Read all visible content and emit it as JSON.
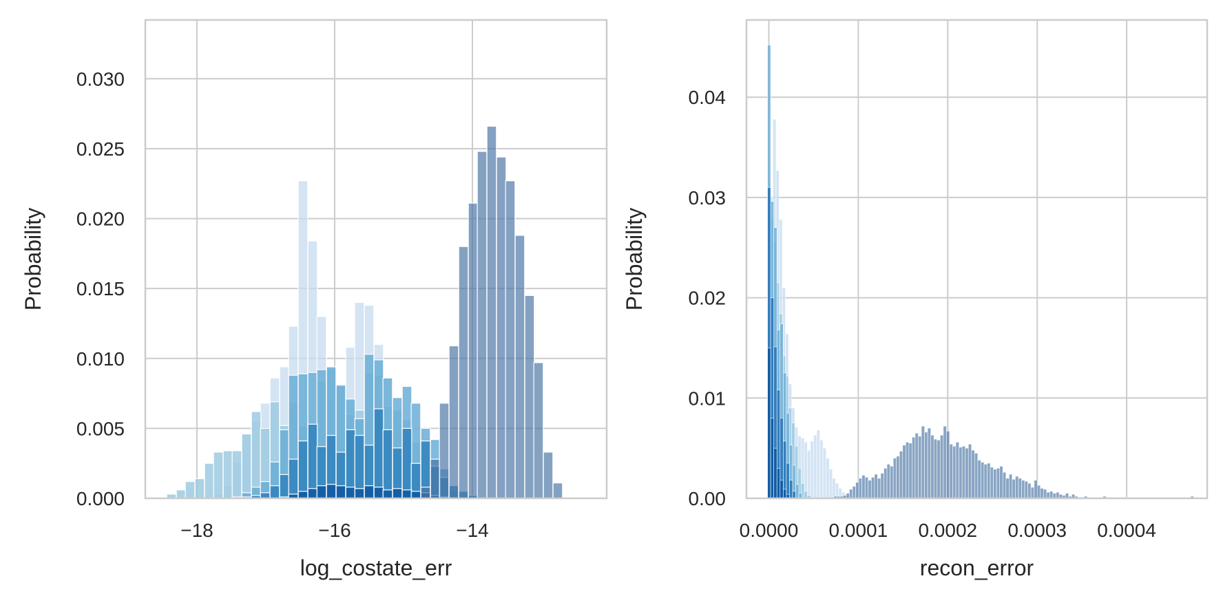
{
  "chart_data": [
    {
      "type": "bar",
      "histogram": true,
      "xlabel": "log_costate_err",
      "ylabel": "Probability",
      "xlim": [
        -18.75,
        -12.05
      ],
      "ylim": [
        0,
        0.0342
      ],
      "xticks": [
        -18,
        -16,
        -14
      ],
      "xtick_labels": [
        "−18",
        "−16",
        "−14"
      ],
      "yticks": [
        0,
        0.005,
        0.01,
        0.015,
        0.02,
        0.025,
        0.03
      ],
      "ytick_labels": [
        "0.000",
        "0.005",
        "0.010",
        "0.015",
        "0.020",
        "0.025",
        "0.030"
      ],
      "grid": true,
      "bin_width": 0.137,
      "series": [
        {
          "color": "#c6dbef",
          "opacity": 0.75,
          "x": [
            -17.69,
            -17.55,
            -17.42,
            -17.28,
            -17.14,
            -17.01,
            -16.87,
            -16.73,
            -16.6,
            -16.46,
            -16.32,
            -16.19,
            -16.05,
            -15.91,
            -15.77,
            -15.64,
            -15.5,
            -15.36,
            -15.23,
            -15.09,
            -14.95,
            -14.82,
            -14.68
          ],
          "values": [
            0.0003,
            0.0009,
            0.0026,
            0.0045,
            0.0055,
            0.0068,
            0.0086,
            0.0094,
            0.0123,
            0.0227,
            0.0184,
            0.013,
            0.0073,
            0.0064,
            0.0108,
            0.014,
            0.0138,
            0.011,
            0.0086,
            0.0055,
            0.0036,
            0.0012,
            0.0003
          ]
        },
        {
          "color": "#9ecae1",
          "opacity": 0.85,
          "x": [
            -18.37,
            -18.23,
            -18.1,
            -17.96,
            -17.82,
            -17.69,
            -17.55,
            -17.42,
            -17.28,
            -17.14,
            -17.01,
            -16.87,
            -16.73,
            -16.6,
            -16.46,
            -16.32,
            -16.19,
            -16.05,
            -15.91,
            -15.77,
            -15.64,
            -15.5,
            -15.36,
            -15.23,
            -15.09,
            -14.95,
            -14.82,
            -14.68,
            -14.54
          ],
          "values": [
            0.0003,
            0.0006,
            0.0012,
            0.0014,
            0.0025,
            0.0033,
            0.0034,
            0.0034,
            0.0046,
            0.0062,
            0.005,
            0.0069,
            0.0052,
            0.0069,
            0.0052,
            0.0036,
            0.0084,
            0.0093,
            0.008,
            0.006,
            0.0063,
            0.009,
            0.0088,
            0.0066,
            0.0063,
            0.0056,
            0.004,
            0.002,
            0.0007
          ]
        },
        {
          "color": "#6baed6",
          "opacity": 0.85,
          "x": [
            -17.42,
            -17.28,
            -17.14,
            -17.01,
            -16.87,
            -16.73,
            -16.6,
            -16.46,
            -16.32,
            -16.19,
            -16.05,
            -15.91,
            -15.77,
            -15.64,
            -15.5,
            -15.36,
            -15.23,
            -15.09,
            -14.95,
            -14.82,
            -14.68,
            -14.54,
            -14.41,
            -14.27
          ],
          "values": [
            0.0001,
            0.0004,
            0.0008,
            0.0012,
            0.0026,
            0.0049,
            0.0088,
            0.0089,
            0.009,
            0.0092,
            0.0094,
            0.0081,
            0.0071,
            0.0057,
            0.0103,
            0.0099,
            0.0086,
            0.0072,
            0.008,
            0.0068,
            0.005,
            0.0042,
            0.0021,
            0.0006
          ]
        },
        {
          "color": "#3182bd",
          "opacity": 0.85,
          "x": [
            -17.28,
            -17.14,
            -17.01,
            -16.87,
            -16.73,
            -16.6,
            -16.46,
            -16.32,
            -16.19,
            -16.05,
            -15.91,
            -15.77,
            -15.64,
            -15.5,
            -15.36,
            -15.23,
            -15.09,
            -14.95,
            -14.82,
            -14.68,
            -14.54,
            -14.41,
            -14.27,
            -14.13,
            -13.99
          ],
          "values": [
            0.0001,
            0.0002,
            0.0004,
            0.0009,
            0.0017,
            0.0028,
            0.0041,
            0.0053,
            0.0037,
            0.0045,
            0.0033,
            0.0049,
            0.0045,
            0.0038,
            0.0064,
            0.0049,
            0.0036,
            0.005,
            0.0025,
            0.0041,
            0.0023,
            0.0015,
            0.0009,
            0.0005,
            0.0002
          ]
        },
        {
          "color": "#08519c",
          "opacity": 0.75,
          "x": [
            -16.73,
            -16.6,
            -16.46,
            -16.32,
            -16.19,
            -16.05,
            -15.91,
            -15.77,
            -15.64,
            -15.5,
            -15.36,
            -15.23,
            -15.09,
            -14.95,
            -14.82,
            -14.68,
            -14.54,
            -14.41
          ],
          "values": [
            0.0001,
            0.0003,
            0.0005,
            0.0007,
            0.0009,
            0.001,
            0.0009,
            0.0008,
            0.0007,
            0.0009,
            0.0008,
            0.0006,
            0.0007,
            0.0006,
            0.0005,
            0.0004,
            0.0002,
            0.0001
          ]
        },
        {
          "color": "#4a74a5",
          "opacity": 0.68,
          "x": [
            -14.68,
            -14.54,
            -14.41,
            -14.27,
            -14.13,
            -13.99,
            -13.86,
            -13.72,
            -13.58,
            -13.45,
            -13.31,
            -13.17,
            -13.04,
            -12.9,
            -12.76
          ],
          "values": [
            0.0008,
            0.0028,
            0.0068,
            0.0109,
            0.018,
            0.0211,
            0.0248,
            0.0266,
            0.0244,
            0.0227,
            0.0188,
            0.0145,
            0.0097,
            0.0033,
            0.0011
          ]
        }
      ]
    },
    {
      "type": "bar",
      "histogram": true,
      "xlabel": "recon_error",
      "ylabel": "Probability",
      "xlim": [
        -2.5e-05,
        0.00049
      ],
      "ylim": [
        0,
        0.0477
      ],
      "xticks": [
        0,
        0.0001,
        0.0002,
        0.0003,
        0.0004
      ],
      "xtick_labels": [
        "0.0000",
        "0.0001",
        "0.0002",
        "0.0003",
        "0.0004"
      ],
      "yticks": [
        0,
        0.01,
        0.02,
        0.03,
        0.04
      ],
      "ytick_labels": [
        "0.00",
        "0.01",
        "0.02",
        "0.03",
        "0.04"
      ],
      "grid": true,
      "bin_width": 3.5e-06,
      "series": [
        {
          "color": "#c6dbef",
          "opacity": 0.75,
          "x": [
            2.8e-06,
            6.3e-06,
            9.8e-06,
            1.33e-05,
            1.68e-05,
            2.03e-05,
            2.38e-05,
            2.73e-05,
            3.08e-05,
            3.43e-05,
            3.78e-05,
            4.13e-05,
            4.48e-05,
            4.83e-05,
            5.18e-05,
            5.53e-05,
            5.88e-05,
            6.23e-05,
            6.58e-05,
            6.93e-05,
            7.28e-05,
            7.63e-05,
            7.98e-05,
            8.33e-05,
            8.68e-05
          ],
          "values": [
            0.03,
            0.0378,
            0.0327,
            0.0278,
            0.021,
            0.0164,
            0.0114,
            0.009,
            0.0071,
            0.0062,
            0.006,
            0.0056,
            0.0048,
            0.0057,
            0.0063,
            0.0068,
            0.0058,
            0.005,
            0.004,
            0.0029,
            0.002,
            0.0015,
            0.001,
            0.0006,
            0.0003
          ]
        },
        {
          "color": "#9ecae1",
          "opacity": 0.85,
          "x": [
            2.8e-06,
            6.3e-06,
            9.8e-06,
            1.33e-05,
            1.68e-05,
            2.03e-05,
            2.38e-05,
            2.73e-05,
            3.08e-05,
            3.43e-05,
            3.78e-05,
            4.13e-05,
            4.48e-05
          ],
          "values": [
            0.028,
            0.0256,
            0.0215,
            0.0184,
            0.0142,
            0.0122,
            0.009,
            0.0075,
            0.0052,
            0.003,
            0.0015,
            0.0007,
            0.0003
          ]
        },
        {
          "color": "#6baed6",
          "opacity": 0.8,
          "x": [
            3e-07,
            3.8e-06,
            7.3e-06,
            1.08e-05,
            1.43e-05,
            1.78e-05,
            2.13e-05,
            2.48e-05,
            2.83e-05,
            3.18e-05,
            3.53e-05
          ],
          "values": [
            0.0452,
            0.0296,
            0.027,
            0.0168,
            0.0174,
            0.0125,
            0.0085,
            0.0053,
            0.0033,
            0.0014,
            0.0005
          ]
        },
        {
          "color": "#2171b5",
          "opacity": 0.8,
          "x": [
            3e-07,
            3.8e-06,
            7.3e-06,
            1.08e-05,
            1.43e-05,
            1.78e-05,
            2.13e-05,
            2.48e-05,
            2.83e-05
          ],
          "values": [
            0.031,
            0.02,
            0.0151,
            0.0108,
            0.008,
            0.0057,
            0.0035,
            0.0018,
            0.0007
          ]
        },
        {
          "color": "#08519c",
          "opacity": 0.75,
          "x": [
            3e-07,
            3.8e-06,
            7.3e-06,
            1.08e-05,
            1.43e-05,
            1.78e-05,
            2.13e-05
          ],
          "values": [
            0.015,
            0.008,
            0.005,
            0.003,
            0.0018,
            0.0009,
            0.0004
          ]
        },
        {
          "color": "#4a74a5",
          "opacity": 0.65,
          "x": [
            7.43e-05,
            7.78e-05,
            8.13e-05,
            8.48e-05,
            8.83e-05,
            9.18e-05,
            9.53e-05,
            9.88e-05,
            0.0001023,
            0.0001058,
            0.0001093,
            0.0001128,
            0.0001163,
            0.0001198,
            0.0001233,
            0.0001268,
            0.0001303,
            0.0001338,
            0.0001373,
            0.0001408,
            0.0001443,
            0.0001478,
            0.0001513,
            0.0001548,
            0.0001583,
            0.0001618,
            0.0001653,
            0.0001688,
            0.0001723,
            0.0001758,
            0.0001793,
            0.0001828,
            0.0001863,
            0.0001898,
            0.0001933,
            0.0001968,
            0.0002003,
            0.0002038,
            0.0002073,
            0.0002108,
            0.0002143,
            0.0002178,
            0.0002213,
            0.0002248,
            0.0002283,
            0.0002318,
            0.0002353,
            0.0002388,
            0.0002423,
            0.0002458,
            0.0002493,
            0.0002528,
            0.0002563,
            0.0002598,
            0.0002633,
            0.0002668,
            0.0002703,
            0.0002738,
            0.0002773,
            0.0002808,
            0.0002843,
            0.0002878,
            0.0002913,
            0.0002948,
            0.0002983,
            0.0003018,
            0.0003053,
            0.0003088,
            0.0003123,
            0.0003158,
            0.0003193,
            0.0003228,
            0.0003263,
            0.0003298,
            0.0003333,
            0.0003368,
            0.0003403,
            0.0003438,
            0.0003473,
            0.0003508,
            0.0003543,
            0.0003578,
            0.0003613,
            0.0003648,
            0.0003683,
            0.0003718,
            0.0003753,
            0.0003788,
            0.0003823,
            0.0003858,
            0.0003893,
            0.0003928,
            0.0003963,
            0.0003998,
            0.0004033,
            0.0004068,
            0.0004103,
            0.0004138,
            0.0004173,
            0.0004208,
            0.0004243,
            0.0004278,
            0.0004313,
            0.0004348,
            0.0004383,
            0.0004418,
            0.0004453,
            0.0004488,
            0.0004523,
            0.0004558,
            0.0004593,
            0.0004628,
            0.0004663,
            0.0004698,
            0.0004733
          ],
          "values": [
            0.0002,
            0.0002,
            0.0002,
            0.0003,
            0.0005,
            0.0009,
            0.0012,
            0.0016,
            0.002,
            0.0023,
            0.0021,
            0.0018,
            0.0021,
            0.0024,
            0.002,
            0.0025,
            0.003,
            0.0034,
            0.0032,
            0.004,
            0.0042,
            0.0047,
            0.0053,
            0.0056,
            0.0055,
            0.0061,
            0.0065,
            0.0062,
            0.0072,
            0.0066,
            0.007,
            0.0063,
            0.0059,
            0.0058,
            0.0063,
            0.0072,
            0.0067,
            0.0054,
            0.0052,
            0.0056,
            0.0051,
            0.0052,
            0.005,
            0.0054,
            0.0048,
            0.0045,
            0.0038,
            0.0036,
            0.0034,
            0.0035,
            0.0031,
            0.0029,
            0.003,
            0.0032,
            0.0026,
            0.002,
            0.0024,
            0.0019,
            0.0022,
            0.002,
            0.0018,
            0.0017,
            0.0015,
            0.0011,
            0.0018,
            0.0013,
            0.001,
            0.0009,
            0.0006,
            0.0007,
            0.0005,
            0.0006,
            0.0004,
            0.0003,
            0.0005,
            0.0002,
            0.0004,
            0.0002,
            0.0001,
            0.0001,
            0.0002,
            0.0001,
            0.0001,
            0.0001,
            0.0001,
            0.0001,
            0.0002,
            0.0001,
            0.0001,
            0.0001,
            0.0001,
            0.0001,
            0.0001,
            0.0001,
            0.0001,
            0.0001,
            0.0001,
            0.0001,
            0.0001,
            0.0001,
            0.0001,
            0.0001,
            0.0001,
            0.0001,
            0.0001,
            0.0001,
            0.0001,
            0.0001,
            0.0001,
            0.0001,
            0.0001,
            0.0001,
            0.0001,
            0.0001,
            0.0002
          ]
        }
      ]
    }
  ]
}
